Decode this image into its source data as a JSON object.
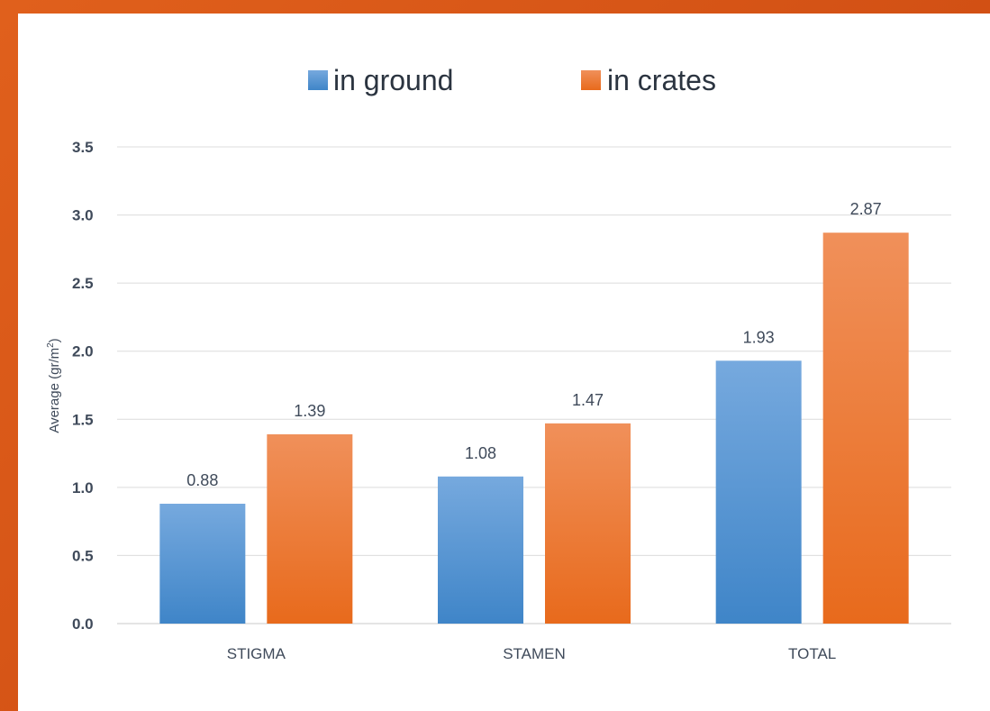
{
  "chart_data": {
    "type": "bar",
    "categories": [
      "STIGMA",
      "STAMEN",
      "TOTAL"
    ],
    "series": [
      {
        "name": "in ground",
        "values": [
          0.88,
          1.08,
          1.93
        ],
        "color": "#5b9bd5"
      },
      {
        "name": "in crates",
        "values": [
          1.39,
          1.47,
          2.87
        ],
        "color": "#ed7d31"
      }
    ],
    "data_labels": [
      [
        "0.88",
        "1.08",
        "1.93"
      ],
      [
        "1.39",
        "1.47",
        "2.87"
      ]
    ],
    "y_ticks": [
      "0.0",
      "0.5",
      "1.0",
      "1.5",
      "2.0",
      "2.5",
      "3.0",
      "3.5"
    ],
    "ylim": [
      0,
      3.5
    ],
    "ylabel": "Average (gr/m",
    "ylabel_sup": "2",
    "ylabel_close": ")",
    "grid": true,
    "legend_position": "top-center"
  }
}
